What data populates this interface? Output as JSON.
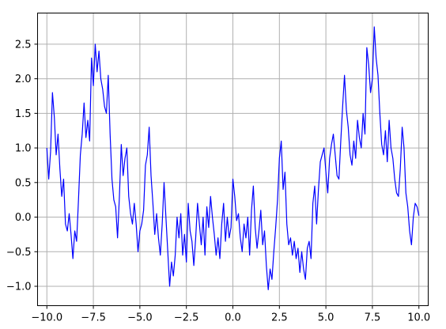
{
  "chart_data": {
    "type": "line",
    "title": "",
    "xlabel": "",
    "ylabel": "",
    "xlim": [
      -10.5,
      10.5
    ],
    "ylim": [
      -1.28,
      2.95
    ],
    "grid": true,
    "legend": "none",
    "x_ticks": [
      -10.0,
      -7.5,
      -5.0,
      -2.5,
      0.0,
      2.5,
      5.0,
      7.5,
      10.0
    ],
    "y_ticks": [
      -1.0,
      -0.5,
      0.0,
      0.5,
      1.0,
      1.5,
      2.0,
      2.5
    ],
    "x_tick_labels": [
      "−10.0",
      "−7.5",
      "−5.0",
      "−2.5",
      "0.0",
      "2.5",
      "5.0",
      "7.5",
      "10.0"
    ],
    "y_tick_labels": [
      "−1.0",
      "−0.5",
      "0.0",
      "0.5",
      "1.0",
      "1.5",
      "2.0",
      "2.5"
    ],
    "line_color": "#0000ff",
    "series": [
      {
        "x": [
          -10.0,
          -9.9,
          -9.8,
          -9.7,
          -9.6,
          -9.5,
          -9.4,
          -9.3,
          -9.2,
          -9.1,
          -9.0,
          -8.9,
          -8.8,
          -8.7,
          -8.6,
          -8.5,
          -8.4,
          -8.3,
          -8.2,
          -8.1,
          -8.0,
          -7.9,
          -7.8,
          -7.7,
          -7.6,
          -7.5,
          -7.4,
          -7.3,
          -7.2,
          -7.1,
          -7.0,
          -6.9,
          -6.8,
          -6.7,
          -6.6,
          -6.5,
          -6.4,
          -6.3,
          -6.2,
          -6.1,
          -6.0,
          -5.9,
          -5.8,
          -5.7,
          -5.6,
          -5.5,
          -5.4,
          -5.3,
          -5.2,
          -5.1,
          -5.0,
          -4.9,
          -4.8,
          -4.7,
          -4.6,
          -4.5,
          -4.4,
          -4.3,
          -4.2,
          -4.1,
          -4.0,
          -3.9,
          -3.8,
          -3.7,
          -3.6,
          -3.5,
          -3.4,
          -3.3,
          -3.2,
          -3.1,
          -3.0,
          -2.9,
          -2.8,
          -2.7,
          -2.6,
          -2.5,
          -2.4,
          -2.3,
          -2.2,
          -2.1,
          -2.0,
          -1.9,
          -1.8,
          -1.7,
          -1.6,
          -1.5,
          -1.4,
          -1.3,
          -1.2,
          -1.1,
          -1.0,
          -0.9,
          -0.8,
          -0.7,
          -0.6,
          -0.5,
          -0.4,
          -0.3,
          -0.2,
          -0.1,
          0.0,
          0.1,
          0.2,
          0.3,
          0.4,
          0.5,
          0.6,
          0.7,
          0.8,
          0.9,
          1.0,
          1.1,
          1.2,
          1.3,
          1.4,
          1.5,
          1.6,
          1.7,
          1.8,
          1.9,
          2.0,
          2.1,
          2.2,
          2.3,
          2.4,
          2.5,
          2.6,
          2.7,
          2.8,
          2.9,
          3.0,
          3.1,
          3.2,
          3.3,
          3.4,
          3.5,
          3.6,
          3.7,
          3.8,
          3.9,
          4.0,
          4.1,
          4.2,
          4.3,
          4.4,
          4.5,
          4.6,
          4.7,
          4.8,
          4.9,
          5.0,
          5.1,
          5.2,
          5.3,
          5.4,
          5.5,
          5.6,
          5.7,
          5.8,
          5.9,
          6.0,
          6.1,
          6.2,
          6.3,
          6.4,
          6.5,
          6.6,
          6.7,
          6.8,
          6.9,
          7.0,
          7.1,
          7.2,
          7.3,
          7.4,
          7.5,
          7.6,
          7.7,
          7.8,
          7.9,
          8.0,
          8.1,
          8.2,
          8.3,
          8.4,
          8.5,
          8.6,
          8.7,
          8.8,
          8.9,
          9.0,
          9.1,
          9.2,
          9.3,
          9.4,
          9.5,
          9.6,
          9.7,
          9.8,
          9.9,
          10.0
        ],
        "y": [
          1.0,
          0.55,
          0.95,
          1.8,
          1.45,
          0.9,
          1.2,
          0.7,
          0.3,
          0.55,
          -0.1,
          -0.2,
          0.05,
          -0.25,
          -0.6,
          -0.2,
          -0.35,
          0.25,
          0.9,
          1.2,
          1.65,
          1.15,
          1.4,
          1.1,
          2.3,
          1.9,
          2.5,
          2.1,
          2.4,
          2.0,
          1.85,
          1.6,
          1.5,
          2.05,
          1.2,
          0.55,
          0.25,
          0.15,
          -0.3,
          0.3,
          1.05,
          0.6,
          0.85,
          1.0,
          0.3,
          0.05,
          -0.1,
          0.2,
          -0.1,
          -0.5,
          -0.2,
          -0.1,
          0.1,
          0.75,
          0.9,
          1.3,
          0.6,
          0.2,
          -0.25,
          0.05,
          -0.3,
          -0.55,
          -0.1,
          0.5,
          0.0,
          -0.5,
          -1.0,
          -0.65,
          -0.85,
          -0.55,
          0.0,
          -0.3,
          0.05,
          -0.55,
          -0.25,
          -0.65,
          0.2,
          -0.2,
          -0.35,
          -0.7,
          -0.3,
          0.2,
          -0.1,
          -0.4,
          0.0,
          -0.55,
          0.15,
          -0.15,
          0.3,
          0.0,
          -0.25,
          -0.55,
          -0.3,
          -0.6,
          -0.1,
          0.2,
          -0.35,
          0.0,
          -0.3,
          -0.15,
          0.55,
          0.3,
          -0.05,
          0.05,
          -0.3,
          -0.5,
          -0.1,
          -0.3,
          0.0,
          -0.55,
          0.1,
          0.45,
          -0.15,
          -0.45,
          -0.2,
          0.1,
          -0.4,
          -0.2,
          -0.7,
          -1.05,
          -0.75,
          -0.9,
          -0.5,
          -0.15,
          0.25,
          0.85,
          1.1,
          0.4,
          0.65,
          -0.1,
          -0.4,
          -0.3,
          -0.55,
          -0.35,
          -0.6,
          -0.45,
          -0.8,
          -0.5,
          -0.75,
          -0.9,
          -0.45,
          -0.35,
          -0.6,
          0.2,
          0.45,
          -0.1,
          0.4,
          0.8,
          0.9,
          1.0,
          0.65,
          0.35,
          0.85,
          1.05,
          1.2,
          0.9,
          0.6,
          0.55,
          1.1,
          1.6,
          2.05,
          1.55,
          1.3,
          0.9,
          0.75,
          1.1,
          0.85,
          1.4,
          1.15,
          1.0,
          1.5,
          1.2,
          2.45,
          2.2,
          1.8,
          2.0,
          2.75,
          2.3,
          2.05,
          1.5,
          1.05,
          0.9,
          1.25,
          0.8,
          1.4,
          1.0,
          0.85,
          0.55,
          0.35,
          0.3,
          0.7,
          1.3,
          1.0,
          0.35,
          0.15,
          -0.2,
          -0.4,
          0.0,
          0.2,
          0.15,
          0.02
        ]
      }
    ]
  }
}
